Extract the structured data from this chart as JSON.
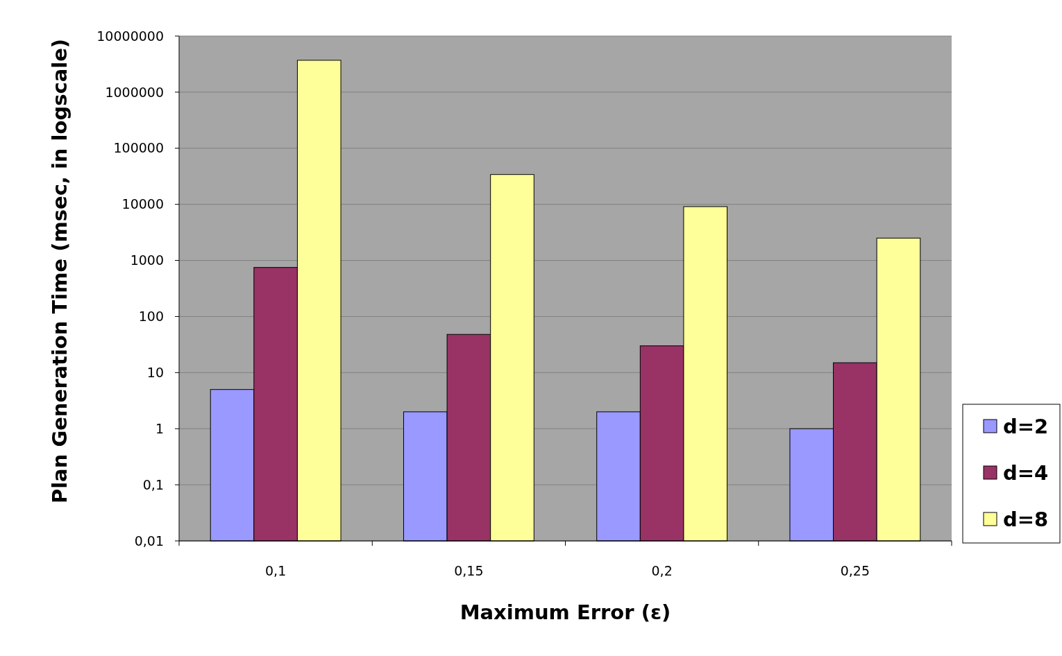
{
  "chart_data": {
    "type": "bar",
    "xlabel": "Maximum Error (ε)",
    "ylabel": "Plan Generation Time (msec, in logscale)",
    "categories": [
      "0,1",
      "0,15",
      "0,2",
      "0,25"
    ],
    "series": [
      {
        "name": "d=2",
        "color": "#9999ff",
        "values": [
          5,
          2,
          2,
          1
        ]
      },
      {
        "name": "d=4",
        "color": "#993366",
        "values": [
          750,
          48,
          30,
          15
        ]
      },
      {
        "name": "d=8",
        "color": "#ffff99",
        "values": [
          3700000,
          34000,
          9100,
          2500
        ]
      }
    ],
    "log": "y",
    "ylim": [
      0.01,
      10000000
    ],
    "yticks": [
      {
        "value": 0.01,
        "label": "0,01"
      },
      {
        "value": 0.1,
        "label": "0,1"
      },
      1,
      10,
      100,
      1000,
      10000,
      100000,
      1000000,
      10000000
    ],
    "grid": "y",
    "legend": "right"
  }
}
